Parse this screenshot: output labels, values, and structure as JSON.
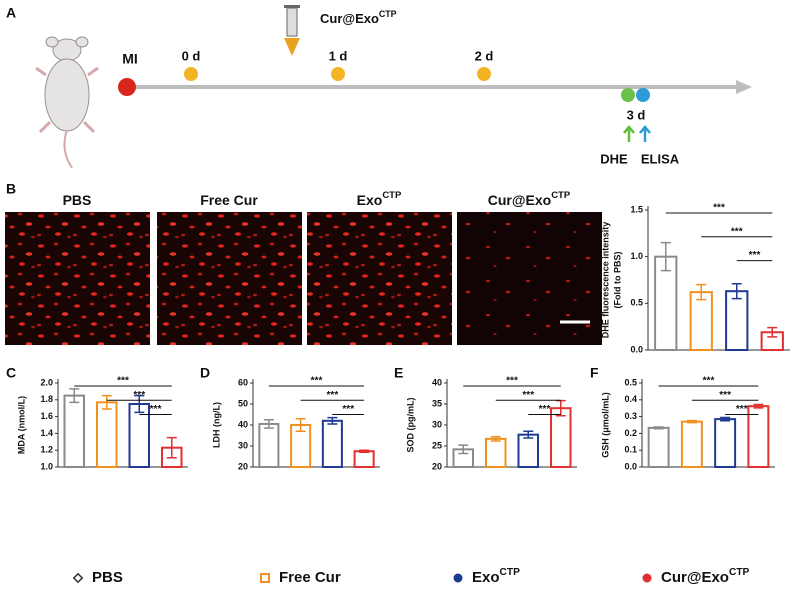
{
  "panel_labels": [
    "A",
    "B",
    "C",
    "D",
    "E",
    "F"
  ],
  "timeline": {
    "start": "MI",
    "days": [
      "0 d",
      "1 d",
      "2 d",
      "3 d"
    ],
    "injection": {
      "text": "Cur@Exo",
      "sup": "CTP"
    },
    "assays": [
      "DHE",
      "ELISA"
    ]
  },
  "images": [
    {
      "text": "PBS"
    },
    {
      "text": "Free Cur"
    },
    {
      "text": "Exo",
      "sup": "CTP"
    },
    {
      "text": "Cur@Exo",
      "sup": "CTP"
    }
  ],
  "groups": [
    {
      "text": "PBS",
      "color": "#8a8a8a",
      "marker": "diamond"
    },
    {
      "text": "Free Cur",
      "color": "#f0901e",
      "marker": "square"
    },
    {
      "text": "Exo",
      "sup": "CTP",
      "color": "#1f3a93",
      "marker": "circle"
    },
    {
      "text": "Cur@Exo",
      "sup": "CTP",
      "color": "#e03030",
      "marker": "circle"
    }
  ],
  "chart_data": [
    {
      "type": "bar",
      "ylabel": [
        "DHE fluorescence intensity",
        "(Fold to PBS)"
      ],
      "values": [
        1.0,
        0.62,
        0.63,
        0.19
      ],
      "errors": [
        0.15,
        0.08,
        0.08,
        0.05
      ],
      "ylim": [
        0,
        1.5
      ],
      "yticks": [
        {
          "value": 0,
          "label": "0.0"
        },
        {
          "value": 0.5,
          "label": "0.5"
        },
        {
          "value": 1,
          "label": "1.0"
        },
        {
          "value": 1.5,
          "label": "1.5"
        }
      ],
      "significance": [
        "***",
        "***",
        "***"
      ]
    },
    {
      "type": "bar",
      "ylabel": [
        "MDA (nmol/L)"
      ],
      "values": [
        1.85,
        1.77,
        1.75,
        1.23
      ],
      "errors": [
        0.08,
        0.08,
        0.1,
        0.12
      ],
      "ylim": [
        1.0,
        2.0
      ],
      "yticks": [
        {
          "value": 1,
          "label": "1.0"
        },
        {
          "value": 1.2,
          "label": "1.2"
        },
        {
          "value": 1.4,
          "label": "1.4"
        },
        {
          "value": 1.6,
          "label": "1.6"
        },
        {
          "value": 1.8,
          "label": "1.8"
        },
        {
          "value": 2,
          "label": "2.0"
        }
      ],
      "significance": [
        "***",
        "***",
        "***"
      ]
    },
    {
      "type": "bar",
      "ylabel": [
        "LDH (ng/L)"
      ],
      "values": [
        40.5,
        40,
        42,
        27.5
      ],
      "errors": [
        2,
        3,
        1.5,
        0.5
      ],
      "ylim": [
        20,
        60
      ],
      "yticks": [
        20,
        30,
        40,
        50,
        60
      ],
      "significance": [
        "***",
        "***",
        "***"
      ]
    },
    {
      "type": "bar",
      "ylabel": [
        "SOD (pg/mL)"
      ],
      "values": [
        24.2,
        26.7,
        27.7,
        34
      ],
      "errors": [
        1,
        0.5,
        0.8,
        1.8
      ],
      "ylim": [
        20,
        40
      ],
      "yticks": [
        20,
        25,
        30,
        35,
        40
      ],
      "significance": [
        "***",
        "***",
        "***"
      ]
    },
    {
      "type": "bar",
      "ylabel": [
        "GSH (μmol/mL)"
      ],
      "values": [
        0.233,
        0.27,
        0.285,
        0.362
      ],
      "errors": [
        0.005,
        0.006,
        0.01,
        0.01
      ],
      "ylim": [
        0,
        0.5
      ],
      "yticks": [
        {
          "value": 0,
          "label": "0.0"
        },
        0.1,
        0.2,
        0.3,
        0.4,
        0.5
      ],
      "significance": [
        "***",
        "***",
        "***"
      ]
    }
  ]
}
